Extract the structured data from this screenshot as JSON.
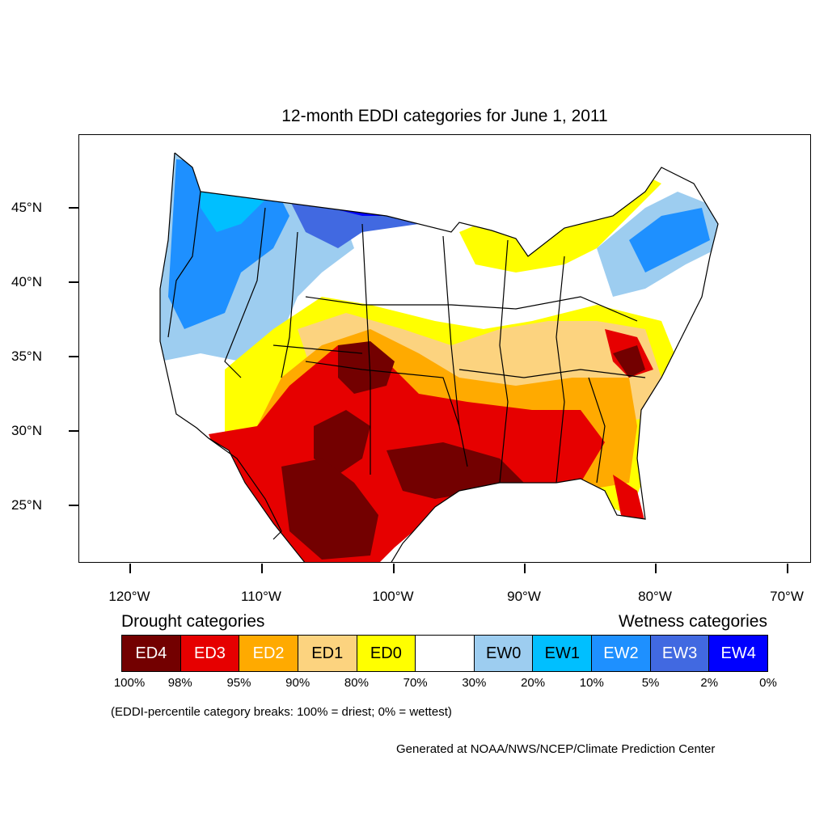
{
  "title": "12-month EDDI categories for June 1, 2011",
  "axes": {
    "lon_labels": [
      "120°W",
      "110°W",
      "100°W",
      "90°W",
      "80°W",
      "70°W"
    ],
    "lat_labels": [
      "45°N",
      "40°N",
      "35°N",
      "30°N",
      "25°N"
    ]
  },
  "legend": {
    "drought_heading": "Drought categories",
    "wetness_heading": "Wetness categories",
    "categories": [
      {
        "label": "ED4",
        "color": "#730000",
        "text_color": "#ffffff"
      },
      {
        "label": "ED3",
        "color": "#e60000",
        "text_color": "#ffffff"
      },
      {
        "label": "ED2",
        "color": "#ffaa00",
        "text_color": "#ffffff"
      },
      {
        "label": "ED1",
        "color": "#fcd37f",
        "text_color": "#000000"
      },
      {
        "label": "ED0",
        "color": "#ffff00",
        "text_color": "#000000"
      },
      {
        "label": "",
        "color": "#ffffff",
        "text_color": "#000000"
      },
      {
        "label": "EW0",
        "color": "#9dcdf0",
        "text_color": "#000000"
      },
      {
        "label": "EW1",
        "color": "#00bfff",
        "text_color": "#000000"
      },
      {
        "label": "EW2",
        "color": "#1e90ff",
        "text_color": "#ffffff"
      },
      {
        "label": "EW3",
        "color": "#4169e1",
        "text_color": "#ffffff"
      },
      {
        "label": "EW4",
        "color": "#0000ff",
        "text_color": "#ffffff"
      }
    ],
    "breaks": [
      "100%",
      "98%",
      "95%",
      "90%",
      "80%",
      "70%",
      "30%",
      "20%",
      "10%",
      "5%",
      "2%",
      "0%"
    ]
  },
  "note": "(EDDI-percentile category breaks: 100% = driest; 0% = wettest)",
  "credit": "Generated at NOAA/NWS/NCEP/Climate Prediction Center"
}
